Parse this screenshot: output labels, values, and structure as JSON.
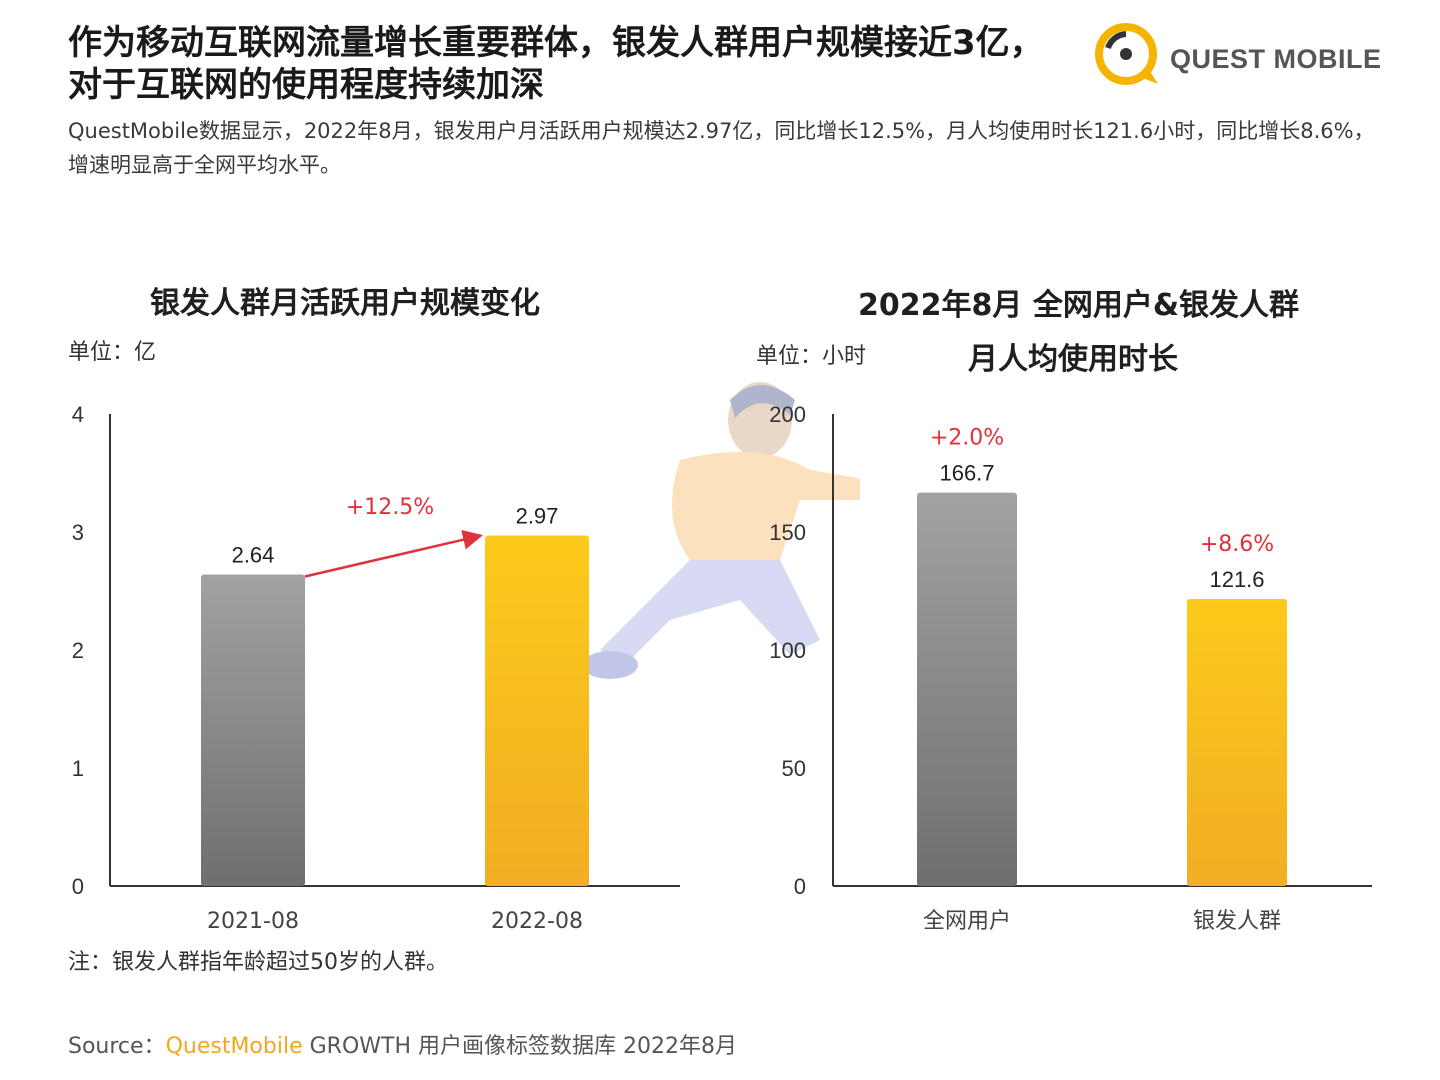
{
  "header": {
    "headline_line1": "作为移动互联网流量增长重要群体，银发人群用户规模接近3亿，",
    "headline_line2": "对于互联网的使用程度持续加深",
    "subtitle": "QuestMobile数据显示，2022年8月，银发用户月活跃用户规模达2.97亿，同比增长12.5%，月人均使用时长121.6小时，同比增长8.6%，增速明显高于全网平均水平。",
    "logo_text": "QUEST MOBILE"
  },
  "colors": {
    "gray_top": "#a2a2a2",
    "gray_bottom": "#6f6f6f",
    "gold_top": "#fcca1a",
    "gold_bottom": "#f2ae24",
    "growth_red": "#e0323c",
    "brand": "#f2a81d"
  },
  "chart_data": [
    {
      "type": "bar",
      "title": "银发人群月活跃用户规模变化",
      "unit_label": "单位：亿",
      "categories": [
        "2021-08",
        "2022-08"
      ],
      "values": [
        2.64,
        2.97
      ],
      "value_labels": [
        "2.64",
        "2.97"
      ],
      "ylim": [
        0,
        4
      ],
      "yticks": [
        0,
        1,
        2,
        3,
        4
      ],
      "growth_annotation": "+12.5%",
      "growth_arrow": true
    },
    {
      "type": "bar",
      "title_line1": "2022年8月 全网用户&银发人群",
      "title_line2": "月人均使用时长",
      "unit_label": "单位：小时",
      "categories": [
        "全网用户",
        "银发人群"
      ],
      "values": [
        166.7,
        121.6
      ],
      "value_labels": [
        "166.7",
        "121.6"
      ],
      "growth_labels": [
        "+2.0%",
        "+8.6%"
      ],
      "ylim": [
        0,
        200
      ],
      "yticks": [
        0,
        50,
        100,
        150,
        200
      ]
    }
  ],
  "footnote": "注：银发人群指年龄超过50岁的人群。",
  "source": {
    "label": "Source：",
    "brand": "QuestMobile",
    "rest": " GROWTH 用户画像标签数据库 2022年8月"
  }
}
